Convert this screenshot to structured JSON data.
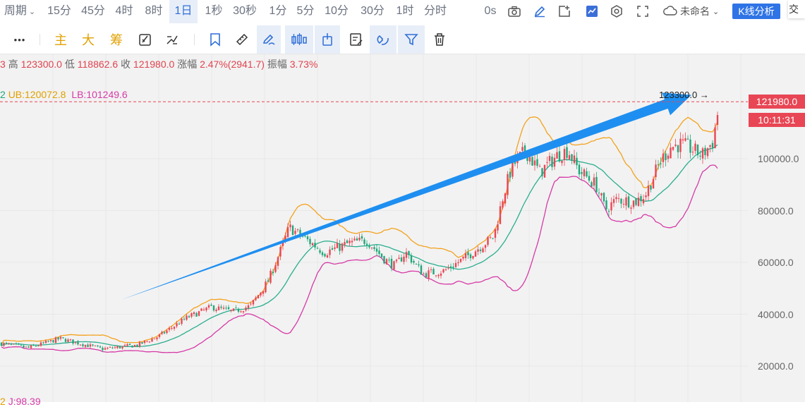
{
  "toolbar": {
    "period_label": "周期",
    "periods": [
      "15分",
      "45分",
      "4时",
      "8时",
      "1日",
      "1秒",
      "30秒",
      "1分",
      "5分",
      "10分",
      "30分",
      "1时",
      "分时"
    ],
    "active_period": "1日",
    "countdown": "0s",
    "layout_name": "未命名",
    "kline_button": "K线分析",
    "side_card_text": "交"
  },
  "drawbar": {
    "more": "•••",
    "indicators": [
      "主",
      "大",
      "筹"
    ]
  },
  "info": {
    "row1_prefix": "3",
    "high_label": "高",
    "high_value": "123300.0",
    "low_label": "低",
    "low_value": "118862.6",
    "close_label": "收",
    "close_value": "121980.0",
    "change_label": "涨幅",
    "change_value": "2.47%(2941.7)",
    "amp_label": "振幅",
    "amp_value": "3.73%",
    "row2_prefix": "2",
    "ub_label": "UB:120072.8",
    "lb_label": "LB:101249.6",
    "row3_prefix": "2",
    "j_label": "J:98.39"
  },
  "chart_data": {
    "type": "candlestick",
    "y_ticks": [
      "100000.0",
      "80000.0",
      "60000.0",
      "40000.0",
      "20000.0"
    ],
    "y_tick_values": [
      100000,
      80000,
      60000,
      40000,
      20000
    ],
    "ylim": [
      14600,
      135000
    ],
    "high_marker": "123300.0",
    "high_value": 123300,
    "last_price": "121980.0",
    "last_value": 121980,
    "countdown": "10:11:31",
    "trend_arrow": {
      "from": 45600,
      "to": 124600
    },
    "colors": {
      "up": "#e84654",
      "down": "#1fa67a",
      "ma": "#2aae8e",
      "upper_band": "#f3a21c",
      "lower_band": "#d63aa6",
      "arrow": "#1e8ff0"
    },
    "key_points": [
      [
        0,
        28800
      ],
      [
        40,
        27000
      ],
      [
        85,
        30600
      ],
      [
        145,
        26600
      ],
      [
        195,
        28100
      ],
      [
        225,
        31500
      ],
      [
        265,
        38700
      ],
      [
        300,
        42800
      ],
      [
        330,
        41000
      ],
      [
        355,
        43200
      ],
      [
        380,
        52800
      ],
      [
        400,
        66200
      ],
      [
        410,
        73500
      ],
      [
        425,
        70600
      ],
      [
        460,
        63800
      ],
      [
        495,
        67400
      ],
      [
        520,
        68500
      ],
      [
        545,
        61200
      ],
      [
        560,
        58600
      ],
      [
        575,
        63900
      ],
      [
        600,
        55500
      ],
      [
        630,
        56800
      ],
      [
        660,
        61900
      ],
      [
        700,
        70000
      ],
      [
        712,
        84400
      ],
      [
        725,
        96700
      ],
      [
        745,
        103200
      ],
      [
        765,
        94800
      ],
      [
        790,
        101300
      ],
      [
        805,
        103400
      ],
      [
        820,
        95600
      ],
      [
        845,
        89800
      ],
      [
        858,
        80400
      ],
      [
        875,
        84400
      ],
      [
        900,
        83300
      ],
      [
        915,
        86200
      ],
      [
        935,
        98500
      ],
      [
        950,
        104500
      ],
      [
        965,
        105600
      ],
      [
        980,
        103800
      ],
      [
        995,
        101300
      ],
      [
        1010,
        106400
      ],
      [
        1020,
        121980
      ]
    ]
  }
}
